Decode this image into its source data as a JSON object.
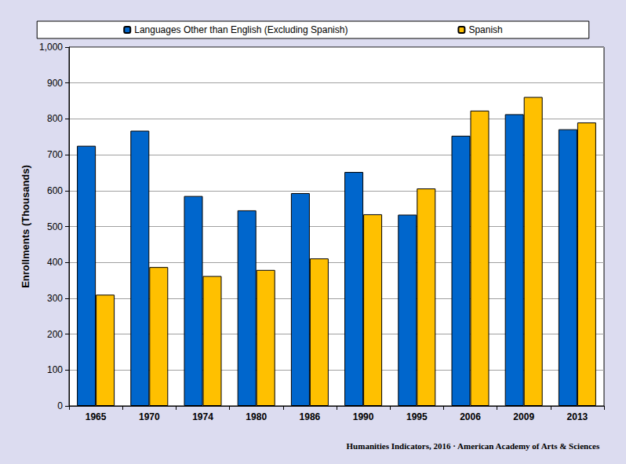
{
  "chart_data": {
    "type": "bar",
    "y_label": "Enrollments (Thousands)",
    "annotations": [
      "Humanities Indicators, 2016 · American Academy of Arts & Sciences"
    ],
    "categories": [
      "1965",
      "1970",
      "1974",
      "1980",
      "1986",
      "1990",
      "1995",
      "2006",
      "2009",
      "2013"
    ],
    "series": [
      {
        "name": "Languages Other than English (Excluding Spanish)",
        "color": "#0066cc",
        "values": [
          725,
          767,
          585,
          545,
          593,
          652,
          533,
          753,
          813,
          771
        ]
      },
      {
        "name": "Spanish",
        "color": "#ffc000",
        "values": [
          310,
          387,
          362,
          379,
          411,
          534,
          606,
          823,
          861,
          790
        ]
      }
    ],
    "ylim": [
      0,
      1000
    ],
    "yticks": [
      0,
      100,
      200,
      300,
      400,
      500,
      600,
      700,
      800,
      900,
      {
        "value": 1000,
        "label": "1,000"
      }
    ],
    "grid": true,
    "legend": "top"
  }
}
